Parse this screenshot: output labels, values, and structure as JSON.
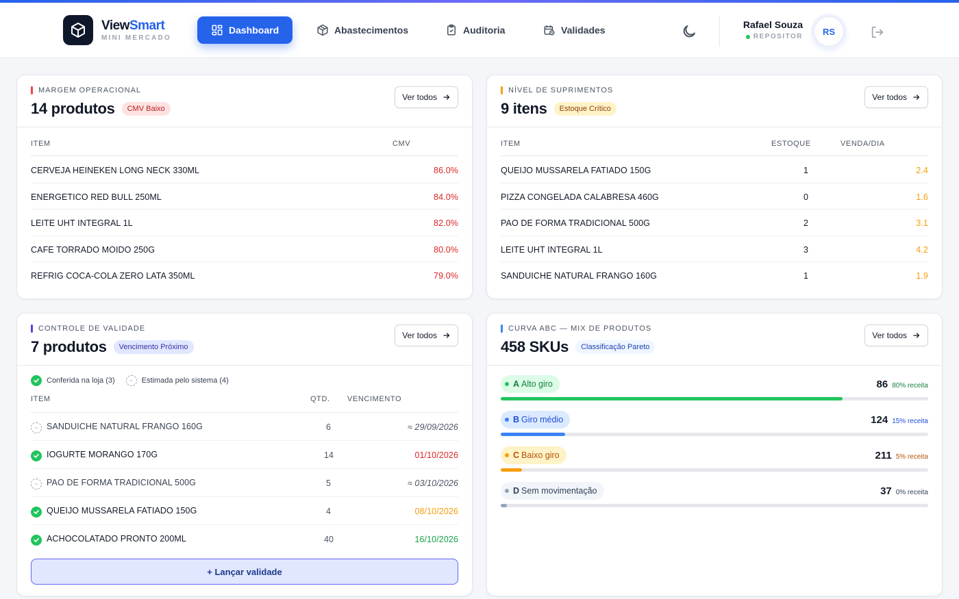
{
  "brand": {
    "name_main": "View",
    "name_accent": "Smart",
    "subtitle": "MINI MERCADO"
  },
  "nav": [
    {
      "label": "Dashboard",
      "icon": "grid-icon",
      "active": true
    },
    {
      "label": "Abastecimentos",
      "icon": "box-icon",
      "active": false
    },
    {
      "label": "Auditoria",
      "icon": "clipboard-check-icon",
      "active": false
    },
    {
      "label": "Validades",
      "icon": "calendar-clock-icon",
      "active": false
    }
  ],
  "user": {
    "name": "Rafael Souza",
    "role": "REPOSITOR",
    "initials": "RS"
  },
  "colors": {
    "primary": "#2563eb",
    "danger": "#dc2626",
    "warning": "#f59e0b",
    "success": "#16a34a",
    "info": "#3b82f6"
  },
  "margem": {
    "label": "MARGEM OPERACIONAL",
    "title": "14 produtos",
    "badge": "CMV Baixo",
    "button": "Ver todos",
    "columns": {
      "item": "ITEM",
      "cmv": "CMV"
    },
    "rows": [
      {
        "item": "CERVEJA HEINEKEN LONG NECK 330ML",
        "cmv": "86.0%"
      },
      {
        "item": "ENERGETICO RED BULL 250ML",
        "cmv": "84.0%"
      },
      {
        "item": "LEITE UHT INTEGRAL 1L",
        "cmv": "82.0%"
      },
      {
        "item": "CAFE TORRADO MOIDO 250G",
        "cmv": "80.0%"
      },
      {
        "item": "REFRIG COCA-COLA ZERO LATA 350ML",
        "cmv": "79.0%"
      }
    ]
  },
  "suprimentos": {
    "label": "NÍVEL DE SUPRIMENTOS",
    "title": "9 itens",
    "badge": "Estoque Crítico",
    "button": "Ver todos",
    "columns": {
      "item": "ITEM",
      "estoque": "ESTOQUE",
      "venda": "VENDA/DIA"
    },
    "rows": [
      {
        "item": "QUEIJO MUSSARELA FATIADO 150G",
        "estoque": "1",
        "venda": "2.4"
      },
      {
        "item": "PIZZA CONGELADA CALABRESA 460G",
        "estoque": "0",
        "venda": "1.6"
      },
      {
        "item": "PAO DE FORMA TRADICIONAL 500G",
        "estoque": "2",
        "venda": "3.1"
      },
      {
        "item": "LEITE UHT INTEGRAL 1L",
        "estoque": "3",
        "venda": "4.2"
      },
      {
        "item": "SANDUICHE NATURAL FRANGO 160G",
        "estoque": "1",
        "venda": "1.9"
      }
    ]
  },
  "validade": {
    "label": "CONTROLE DE VALIDADE",
    "title": "7 produtos",
    "badge": "Vencimento Próximo",
    "button": "Ver todos",
    "legend": {
      "checked": "Conferida na loja (3)",
      "estimated": "Estimada pelo sistema (4)"
    },
    "columns": {
      "item": "ITEM",
      "qtd": "QTD.",
      "venc": "VENCIMENTO"
    },
    "rows": [
      {
        "item": "SANDUICHE NATURAL FRANGO 160G",
        "qtd": "6",
        "venc": "≈ 29/09/2026",
        "status": "estimated",
        "tone": "muted"
      },
      {
        "item": "IOGURTE MORANGO 170G",
        "qtd": "14",
        "venc": "01/10/2026",
        "status": "checked",
        "tone": "red"
      },
      {
        "item": "PAO DE FORMA TRADICIONAL 500G",
        "qtd": "5",
        "venc": "≈ 03/10/2026",
        "status": "estimated",
        "tone": "muted"
      },
      {
        "item": "QUEIJO MUSSARELA FATIADO 150G",
        "qtd": "4",
        "venc": "08/10/2026",
        "status": "checked",
        "tone": "amber"
      },
      {
        "item": "ACHOCOLATADO PRONTO 200ML",
        "qtd": "40",
        "venc": "16/10/2026",
        "status": "checked",
        "tone": "green"
      }
    ],
    "action": "+ Lançar validade"
  },
  "abc": {
    "label": "CURVA ABC — MIX DE PRODUTOS",
    "title": "458 SKUs",
    "badge": "Classificação Pareto",
    "button": "Ver todos",
    "rows": [
      {
        "letter": "A",
        "name": "Alto giro",
        "count": "86",
        "share": "80% receita",
        "fraction": 0.8,
        "color": "#22c55e",
        "pill_bg": "#dcfce7",
        "text_color": "#15803d"
      },
      {
        "letter": "B",
        "name": "Giro médio",
        "count": "124",
        "share": "15% receita",
        "fraction": 0.15,
        "color": "#3b82f6",
        "pill_bg": "#dbeafe",
        "text_color": "#1d4ed8"
      },
      {
        "letter": "C",
        "name": "Baixo giro",
        "count": "211",
        "share": "5% receita",
        "fraction": 0.05,
        "color": "#f59e0b",
        "pill_bg": "#fef3c7",
        "text_color": "#b45309"
      },
      {
        "letter": "D",
        "name": "Sem movimentação",
        "count": "37",
        "share": "0% receita",
        "fraction": 0.0,
        "color": "#94a3b8",
        "pill_bg": "#f1f5f9",
        "text_color": "#334155"
      }
    ]
  }
}
